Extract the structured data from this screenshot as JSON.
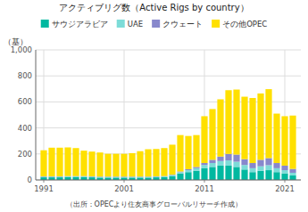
{
  "chart_data": {
    "type": "bar",
    "stacked": true,
    "title": "アクティブリグ数（Active Rigs by country）",
    "ylabel": "（基）",
    "annotations": [
      "（出所：OPECより住友商事グローバルリサーチ作成）"
    ],
    "x": [
      1991,
      1992,
      1993,
      1994,
      1995,
      1996,
      1997,
      1998,
      1999,
      2000,
      2001,
      2002,
      2003,
      2004,
      2005,
      2006,
      2007,
      2008,
      2009,
      2010,
      2011,
      2012,
      2013,
      2014,
      2015,
      2016,
      2017,
      2018,
      2019,
      2020,
      2021,
      2022
    ],
    "series": [
      {
        "name": "サウジアラビア",
        "color": "#00b8a0",
        "values": [
          20,
          20,
          20,
          22,
          22,
          22,
          20,
          18,
          18,
          18,
          18,
          18,
          18,
          18,
          20,
          22,
          30,
          50,
          60,
          70,
          90,
          100,
          110,
          110,
          100,
          80,
          60,
          70,
          75,
          60,
          50,
          35
        ]
      },
      {
        "name": "UAE",
        "color": "#7ddcd8",
        "values": [
          5,
          5,
          5,
          5,
          5,
          5,
          5,
          5,
          5,
          5,
          5,
          5,
          5,
          5,
          5,
          5,
          8,
          10,
          15,
          20,
          25,
          30,
          35,
          40,
          40,
          35,
          30,
          35,
          38,
          30,
          25,
          20
        ]
      },
      {
        "name": "クウェート",
        "color": "#8888cc",
        "values": [
          3,
          3,
          3,
          3,
          3,
          3,
          3,
          3,
          3,
          3,
          3,
          3,
          3,
          3,
          3,
          3,
          3,
          5,
          8,
          10,
          15,
          25,
          35,
          50,
          55,
          45,
          40,
          50,
          55,
          40,
          35,
          30
        ]
      },
      {
        "name": "その他OPEC",
        "color": "#ffe000",
        "values": [
          200,
          220,
          220,
          220,
          215,
          195,
          190,
          185,
          175,
          175,
          175,
          180,
          195,
          210,
          210,
          215,
          230,
          280,
          255,
          245,
          360,
          390,
          440,
          490,
          500,
          480,
          500,
          510,
          530,
          380,
          380,
          410
        ]
      }
    ],
    "xlim": [
      1990,
      2023
    ],
    "xticks": [
      1991,
      2001,
      2011,
      2021
    ],
    "ylim": [
      0,
      1000
    ],
    "yticks": [
      0,
      200,
      400,
      600,
      800,
      {
        "value": 1000,
        "label": "1,000"
      }
    ],
    "grid": true,
    "legend": "upper left"
  }
}
